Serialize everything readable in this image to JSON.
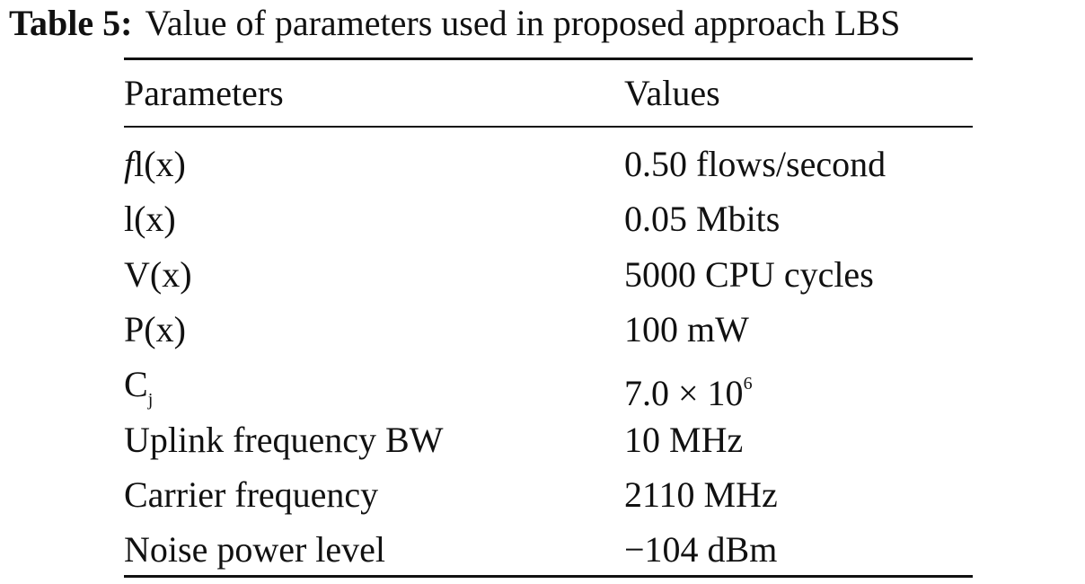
{
  "caption": {
    "label": "Table 5:",
    "text": "Value of parameters used in proposed approach LBS"
  },
  "table": {
    "header": [
      "Parameters",
      "Values"
    ],
    "rows": [
      [
        [
          "f",
          "l(x)"
        ],
        "0.50 flows/second"
      ],
      [
        "l(x)",
        "0.05 Mbits"
      ],
      [
        "V(x)",
        "5000 CPU cycles"
      ],
      [
        "P(x)",
        "100 mW"
      ],
      [
        [
          "C",
          "j"
        ],
        [
          "7.0 × 10",
          "6"
        ]
      ],
      [
        "Uplink frequency BW",
        "10 MHz"
      ],
      [
        "Carrier frequency",
        "2110 MHz"
      ],
      [
        "Noise power level",
        "−104 dBm"
      ]
    ]
  }
}
